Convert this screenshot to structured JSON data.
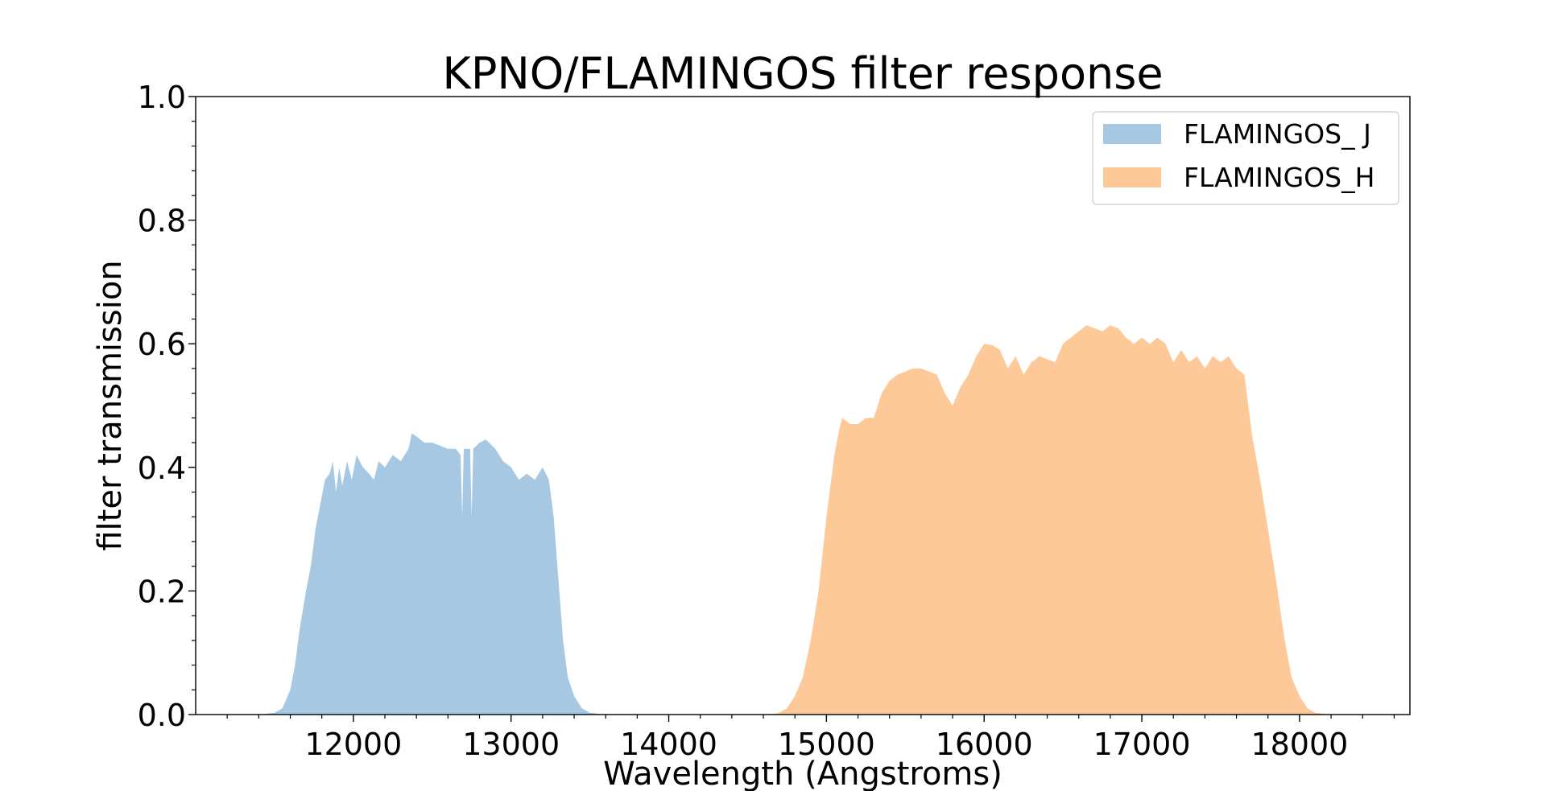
{
  "chart_data": {
    "type": "area",
    "title": "KPNO/FLAMINGOS filter response",
    "xlabel": "Wavelength (Angstroms)",
    "ylabel": "filter transmission",
    "xlim": [
      11000,
      18700
    ],
    "ylim": [
      0.0,
      1.0
    ],
    "xticks": [
      12000,
      13000,
      14000,
      15000,
      16000,
      17000,
      18000
    ],
    "xtick_labels": [
      "12000",
      "13000",
      "14000",
      "15000",
      "16000",
      "17000",
      "18000"
    ],
    "yticks": [
      0.0,
      0.2,
      0.4,
      0.6,
      0.8,
      1.0
    ],
    "ytick_labels": [
      "0.0",
      "0.2",
      "0.4",
      "0.6",
      "0.8",
      "1.0"
    ],
    "grid": false,
    "legend_position": "top-right",
    "series": [
      {
        "name": "FLAMINGOS_ J",
        "color": "#a6c8e2",
        "points": [
          [
            11400,
            0.0
          ],
          [
            11500,
            0.003
          ],
          [
            11550,
            0.01
          ],
          [
            11600,
            0.04
          ],
          [
            11630,
            0.08
          ],
          [
            11660,
            0.14
          ],
          [
            11700,
            0.2
          ],
          [
            11730,
            0.24
          ],
          [
            11760,
            0.3
          ],
          [
            11790,
            0.34
          ],
          [
            11820,
            0.38
          ],
          [
            11850,
            0.39
          ],
          [
            11870,
            0.41
          ],
          [
            11890,
            0.36
          ],
          [
            11910,
            0.4
          ],
          [
            11930,
            0.37
          ],
          [
            11960,
            0.41
          ],
          [
            11990,
            0.38
          ],
          [
            12020,
            0.42
          ],
          [
            12060,
            0.4
          ],
          [
            12100,
            0.39
          ],
          [
            12130,
            0.38
          ],
          [
            12160,
            0.41
          ],
          [
            12200,
            0.4
          ],
          [
            12250,
            0.42
          ],
          [
            12300,
            0.41
          ],
          [
            12350,
            0.43
          ],
          [
            12370,
            0.455
          ],
          [
            12400,
            0.45
          ],
          [
            12450,
            0.44
          ],
          [
            12500,
            0.44
          ],
          [
            12550,
            0.435
          ],
          [
            12600,
            0.43
          ],
          [
            12650,
            0.43
          ],
          [
            12680,
            0.42
          ],
          [
            12690,
            0.32
          ],
          [
            12700,
            0.43
          ],
          [
            12740,
            0.43
          ],
          [
            12750,
            0.32
          ],
          [
            12760,
            0.43
          ],
          [
            12800,
            0.44
          ],
          [
            12840,
            0.445
          ],
          [
            12900,
            0.43
          ],
          [
            12950,
            0.41
          ],
          [
            13000,
            0.4
          ],
          [
            13050,
            0.38
          ],
          [
            13100,
            0.39
          ],
          [
            13150,
            0.38
          ],
          [
            13200,
            0.4
          ],
          [
            13240,
            0.38
          ],
          [
            13270,
            0.32
          ],
          [
            13300,
            0.22
          ],
          [
            13330,
            0.12
          ],
          [
            13360,
            0.06
          ],
          [
            13400,
            0.03
          ],
          [
            13450,
            0.01
          ],
          [
            13500,
            0.003
          ],
          [
            13600,
            0.0
          ]
        ]
      },
      {
        "name": "FLAMINGOS_H",
        "color": "#fdc999",
        "points": [
          [
            14650,
            0.0
          ],
          [
            14700,
            0.003
          ],
          [
            14750,
            0.01
          ],
          [
            14800,
            0.03
          ],
          [
            14850,
            0.06
          ],
          [
            14900,
            0.12
          ],
          [
            14950,
            0.2
          ],
          [
            15000,
            0.32
          ],
          [
            15050,
            0.42
          ],
          [
            15080,
            0.46
          ],
          [
            15100,
            0.48
          ],
          [
            15150,
            0.47
          ],
          [
            15200,
            0.47
          ],
          [
            15250,
            0.48
          ],
          [
            15300,
            0.48
          ],
          [
            15350,
            0.52
          ],
          [
            15400,
            0.54
          ],
          [
            15450,
            0.55
          ],
          [
            15500,
            0.555
          ],
          [
            15550,
            0.56
          ],
          [
            15600,
            0.56
          ],
          [
            15650,
            0.555
          ],
          [
            15700,
            0.55
          ],
          [
            15750,
            0.52
          ],
          [
            15800,
            0.5
          ],
          [
            15850,
            0.53
          ],
          [
            15900,
            0.55
          ],
          [
            15950,
            0.58
          ],
          [
            16000,
            0.6
          ],
          [
            16050,
            0.598
          ],
          [
            16100,
            0.59
          ],
          [
            16150,
            0.56
          ],
          [
            16200,
            0.58
          ],
          [
            16250,
            0.55
          ],
          [
            16300,
            0.57
          ],
          [
            16350,
            0.58
          ],
          [
            16400,
            0.575
          ],
          [
            16450,
            0.57
          ],
          [
            16500,
            0.6
          ],
          [
            16550,
            0.61
          ],
          [
            16600,
            0.62
          ],
          [
            16650,
            0.63
          ],
          [
            16700,
            0.625
          ],
          [
            16750,
            0.62
          ],
          [
            16800,
            0.63
          ],
          [
            16850,
            0.625
          ],
          [
            16900,
            0.61
          ],
          [
            16950,
            0.6
          ],
          [
            17000,
            0.61
          ],
          [
            17050,
            0.6
          ],
          [
            17100,
            0.61
          ],
          [
            17150,
            0.6
          ],
          [
            17200,
            0.57
          ],
          [
            17250,
            0.59
          ],
          [
            17300,
            0.57
          ],
          [
            17350,
            0.58
          ],
          [
            17400,
            0.56
          ],
          [
            17450,
            0.58
          ],
          [
            17500,
            0.57
          ],
          [
            17550,
            0.58
          ],
          [
            17600,
            0.56
          ],
          [
            17650,
            0.55
          ],
          [
            17700,
            0.45
          ],
          [
            17750,
            0.38
          ],
          [
            17800,
            0.3
          ],
          [
            17850,
            0.22
          ],
          [
            17900,
            0.13
          ],
          [
            17950,
            0.06
          ],
          [
            18000,
            0.03
          ],
          [
            18050,
            0.01
          ],
          [
            18100,
            0.003
          ],
          [
            18200,
            0.0
          ]
        ]
      }
    ]
  }
}
